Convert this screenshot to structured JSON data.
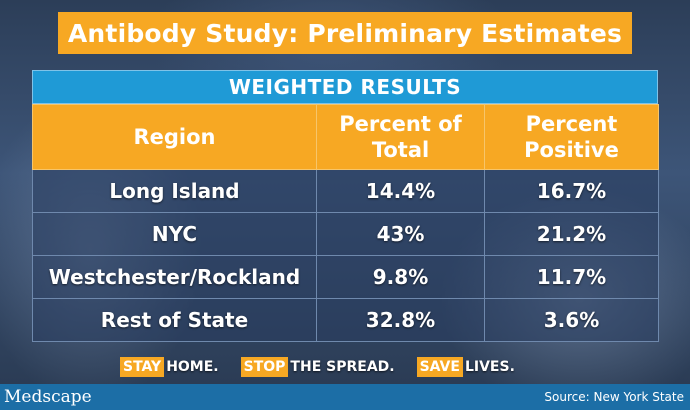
{
  "title": "Antibody Study: Preliminary Estimates",
  "table": {
    "caption": "WEIGHTED RESULTS",
    "headers": {
      "region": "Region",
      "pct_total_line1": "Percent of",
      "pct_total_line2": "Total",
      "pct_positive_line1": "Percent",
      "pct_positive_line2": "Positive"
    },
    "rows": [
      {
        "region": "Long Island",
        "pct_total": "14.4%",
        "pct_positive": "16.7%"
      },
      {
        "region": "NYC",
        "pct_total": "43%",
        "pct_positive": "21.2%"
      },
      {
        "region": "Westchester/Rockland",
        "pct_total": "9.8%",
        "pct_positive": "11.7%"
      },
      {
        "region": "Rest of State",
        "pct_total": "32.8%",
        "pct_positive": "3.6%"
      }
    ]
  },
  "slogans": [
    {
      "tag": "STAY",
      "rest": "HOME."
    },
    {
      "tag": "STOP",
      "rest": "THE SPREAD."
    },
    {
      "tag": "SAVE",
      "rest": "LIVES."
    }
  ],
  "footer": {
    "logo": "Medscape",
    "source": "Source: New York State"
  },
  "colors": {
    "accent_orange": "#f7a823",
    "header_blue": "#1f9ad6",
    "footer_blue": "#1c6ea6"
  }
}
